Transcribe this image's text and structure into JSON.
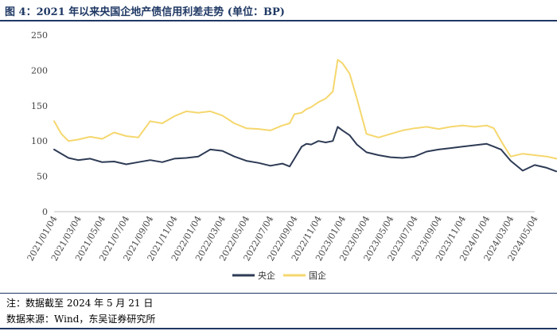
{
  "header": {
    "title": "图 4：2021 年以来央国企地产债信用利差走势 (单位：BP)"
  },
  "footer": {
    "note": "注：数据截至 2024 年 5 月 21 日",
    "source": "数据来源：Wind，东吴证券研究所"
  },
  "chart_data": {
    "type": "line",
    "title": "2021 年以来央国企地产债信用利差走势",
    "unit": "BP",
    "ylim": [
      0,
      250
    ],
    "yticks": [
      "0",
      "50",
      "100",
      "150",
      "200",
      "250"
    ],
    "xlabels": [
      "2021/01/04",
      "2021/03/04",
      "2021/05/04",
      "2021/07/04",
      "2021/09/04",
      "2021/11/04",
      "2022/01/04",
      "2022/03/04",
      "2022/05/04",
      "2022/07/04",
      "2022/09/04",
      "2022/11/04",
      "2023/01/04",
      "2023/03/04",
      "2023/05/04",
      "2023/07/04",
      "2023/09/04",
      "2023/11/04",
      "2024/01/04",
      "2024/03/04",
      "2024/05/04"
    ],
    "x_index": [
      0,
      0.3,
      0.6,
      1,
      1.5,
      2,
      2.5,
      3,
      3.5,
      4,
      4.5,
      5,
      5.5,
      6,
      6.5,
      7,
      7.5,
      8,
      8.5,
      9,
      9.5,
      9.8,
      10,
      10.3,
      10.5,
      10.7,
      11,
      11.3,
      11.6,
      11.8,
      12,
      12.3,
      12.6,
      13,
      13.5,
      14,
      14.5,
      15,
      15.5,
      16,
      16.5,
      17,
      17.5,
      18,
      18.3,
      18.6,
      19,
      19.5,
      20,
      20.5,
      20.9
    ],
    "legend": [
      "央企",
      "国企"
    ],
    "series": [
      {
        "name": "央企",
        "color": "#2e3b55",
        "values": [
          88,
          82,
          76,
          73,
          75,
          70,
          71,
          67,
          70,
          73,
          70,
          75,
          76,
          78,
          88,
          86,
          78,
          72,
          69,
          65,
          68,
          64,
          75,
          92,
          96,
          95,
          100,
          98,
          100,
          120,
          115,
          108,
          95,
          84,
          80,
          77,
          76,
          78,
          85,
          88,
          90,
          92,
          94,
          96,
          92,
          88,
          72,
          58,
          66,
          62,
          57
        ]
      },
      {
        "name": "国企",
        "color": "#f5d76e",
        "values": [
          128,
          110,
          100,
          102,
          106,
          103,
          112,
          107,
          105,
          128,
          125,
          135,
          142,
          140,
          142,
          136,
          125,
          118,
          117,
          115,
          122,
          125,
          138,
          140,
          145,
          148,
          155,
          160,
          170,
          215,
          210,
          195,
          160,
          110,
          105,
          110,
          115,
          118,
          120,
          117,
          120,
          122,
          120,
          122,
          118,
          100,
          78,
          82,
          80,
          78,
          75
        ]
      }
    ]
  }
}
